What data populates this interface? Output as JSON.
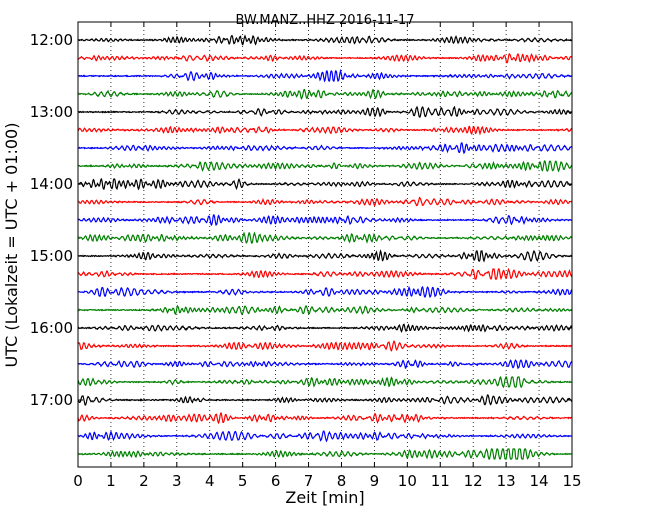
{
  "chart_data": {
    "type": "line",
    "title": "BW.MANZ..HHZ 2016-11-17",
    "xlabel": "Zeit  [min]",
    "ylabel": "UTC (Lokalzeit = UTC + 01:00)",
    "xlim": [
      0,
      15
    ],
    "x_ticks": [
      "0",
      "1",
      "2",
      "3",
      "4",
      "5",
      "6",
      "7",
      "8",
      "9",
      "10",
      "11",
      "12",
      "13",
      "14",
      "15"
    ],
    "y_ticks": [
      "12:00",
      "13:00",
      "14:00",
      "15:00",
      "16:00",
      "17:00"
    ],
    "trace_start_minutes_of_day": 720,
    "trace_interval_minutes": 15,
    "trace_count": 24,
    "trace_colors": [
      "#000000",
      "#ff0000",
      "#0000ff",
      "#008000"
    ],
    "grid": "vertical-dotted"
  }
}
